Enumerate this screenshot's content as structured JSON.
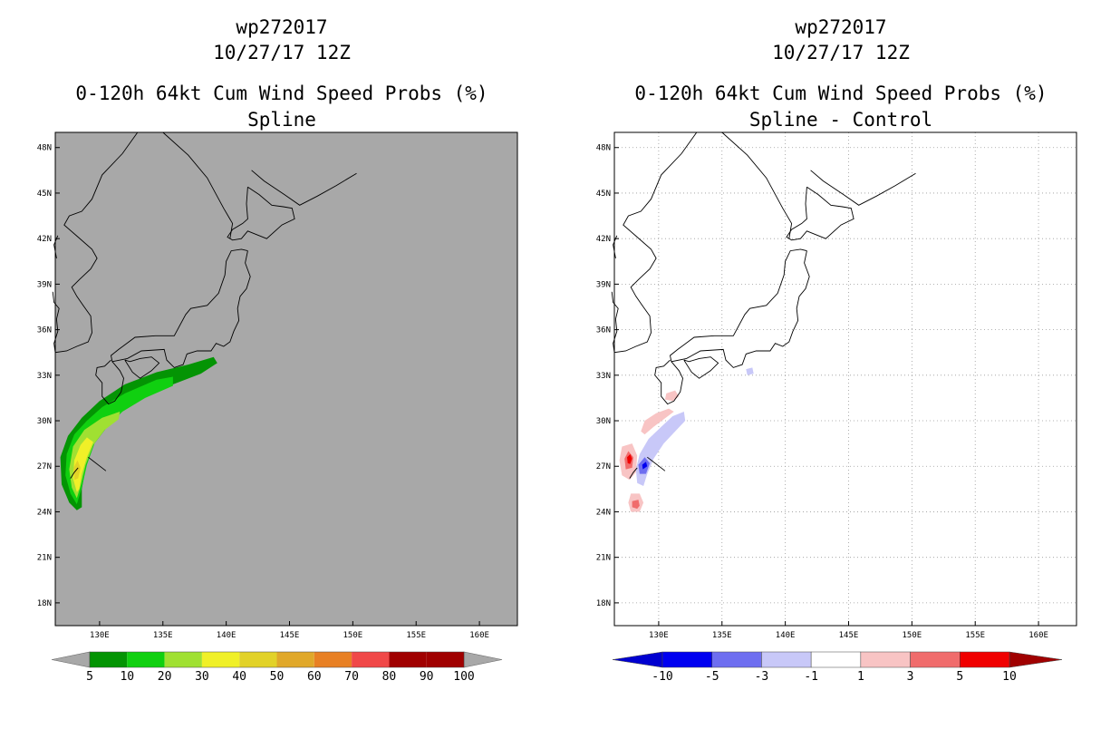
{
  "chart_data": [
    {
      "type": "heatmap",
      "storm_id": "wp272017",
      "datetime": "10/27/17 12Z",
      "title": "0-120h 64kt Cum Wind Speed Probs (%)",
      "subtitle": "Spline",
      "background_color": "#a8a8a8",
      "xlim": [
        126.5,
        163
      ],
      "ylim": [
        16.5,
        49
      ],
      "x_ticks": [
        {
          "value": 130,
          "label": "130E"
        },
        {
          "value": 135,
          "label": "135E"
        },
        {
          "value": 140,
          "label": "140E"
        },
        {
          "value": 145,
          "label": "145E"
        },
        {
          "value": 150,
          "label": "150E"
        },
        {
          "value": 155,
          "label": "155E"
        },
        {
          "value": 160,
          "label": "160E"
        }
      ],
      "y_ticks": [
        {
          "value": 18,
          "label": "18N"
        },
        {
          "value": 21,
          "label": "21N"
        },
        {
          "value": 24,
          "label": "24N"
        },
        {
          "value": 27,
          "label": "27N"
        },
        {
          "value": 30,
          "label": "30N"
        },
        {
          "value": 33,
          "label": "33N"
        },
        {
          "value": 36,
          "label": "36N"
        },
        {
          "value": 39,
          "label": "39N"
        },
        {
          "value": 42,
          "label": "42N"
        },
        {
          "value": 45,
          "label": "45N"
        },
        {
          "value": 48,
          "label": "48N"
        }
      ],
      "grid": false,
      "colorbar": {
        "labels": [
          "5",
          "10",
          "20",
          "30",
          "40",
          "50",
          "60",
          "70",
          "80",
          "90",
          "100"
        ],
        "colors": [
          "#049404",
          "#10d010",
          "#a0e032",
          "#f0f028",
          "#e2d228",
          "#e0a82a",
          "#e88024",
          "#f04848",
          "#a00000",
          "#a00000",
          "#8000e0"
        ],
        "extend_color": "#a8a8a8"
      },
      "contours": [
        {
          "level": 5,
          "color": "#049404",
          "points": [
            [
              128.2,
              24.1
            ],
            [
              127.6,
              24.6
            ],
            [
              127.0,
              25.8
            ],
            [
              126.9,
              27.6
            ],
            [
              127.5,
              29.0
            ],
            [
              128.6,
              30.2
            ],
            [
              130.0,
              31.3
            ],
            [
              132.0,
              32.4
            ],
            [
              134.5,
              33.2
            ],
            [
              137.0,
              33.7
            ],
            [
              139.0,
              34.2
            ],
            [
              139.3,
              33.8
            ],
            [
              138.0,
              33.1
            ],
            [
              135.5,
              32.3
            ],
            [
              133.0,
              31.5
            ],
            [
              131.0,
              30.3
            ],
            [
              129.8,
              29.0
            ],
            [
              129.0,
              27.4
            ],
            [
              128.6,
              25.5
            ],
            [
              128.6,
              24.3
            ]
          ]
        },
        {
          "level": 10,
          "color": "#10d010",
          "points": [
            [
              128.2,
              24.5
            ],
            [
              127.7,
              25.2
            ],
            [
              127.3,
              26.4
            ],
            [
              127.4,
              27.8
            ],
            [
              128.0,
              29.1
            ],
            [
              129.0,
              30.0
            ],
            [
              130.2,
              30.9
            ],
            [
              132.0,
              31.8
            ],
            [
              134.5,
              32.7
            ],
            [
              135.8,
              32.9
            ],
            [
              135.8,
              32.3
            ],
            [
              133.6,
              31.5
            ],
            [
              131.8,
              30.6
            ],
            [
              130.6,
              29.6
            ],
            [
              129.6,
              28.5
            ],
            [
              129.0,
              27.1
            ],
            [
              128.6,
              25.6
            ]
          ]
        },
        {
          "level": 20,
          "color": "#a0e032",
          "points": [
            [
              128.2,
              24.9
            ],
            [
              127.8,
              25.6
            ],
            [
              127.6,
              26.8
            ],
            [
              127.9,
              28.3
            ],
            [
              128.8,
              29.4
            ],
            [
              130.2,
              30.2
            ],
            [
              131.6,
              30.6
            ],
            [
              131.5,
              30.1
            ],
            [
              130.4,
              29.4
            ],
            [
              129.5,
              28.4
            ],
            [
              128.9,
              27.1
            ],
            [
              128.5,
              25.7
            ]
          ]
        },
        {
          "level": 30,
          "color": "#f0f028",
          "points": [
            [
              128.2,
              25.3
            ],
            [
              127.9,
              26.2
            ],
            [
              128.0,
              27.4
            ],
            [
              128.5,
              28.4
            ],
            [
              129.0,
              28.9
            ],
            [
              129.5,
              28.6
            ],
            [
              129.0,
              27.6
            ],
            [
              128.6,
              26.5
            ],
            [
              128.4,
              25.5
            ]
          ]
        },
        {
          "level": 40,
          "color": "#e2d228",
          "points": [
            [
              128.0,
              26.1
            ],
            [
              127.95,
              26.9
            ],
            [
              128.25,
              27.4
            ],
            [
              128.5,
              26.9
            ],
            [
              128.3,
              26.2
            ]
          ]
        }
      ],
      "colorbar_domain": [
        5,
        100
      ]
    },
    {
      "type": "heatmap",
      "storm_id": "wp272017",
      "datetime": "10/27/17 12Z",
      "title": "0-120h 64kt Cum Wind Speed Probs (%)",
      "subtitle": "Spline - Control",
      "background_color": "#ffffff",
      "xlim": [
        126.5,
        163
      ],
      "ylim": [
        16.5,
        49
      ],
      "x_ticks": [
        {
          "value": 130,
          "label": "130E"
        },
        {
          "value": 135,
          "label": "135E"
        },
        {
          "value": 140,
          "label": "140E"
        },
        {
          "value": 145,
          "label": "145E"
        },
        {
          "value": 150,
          "label": "150E"
        },
        {
          "value": 155,
          "label": "155E"
        },
        {
          "value": 160,
          "label": "160E"
        }
      ],
      "y_ticks": [
        {
          "value": 18,
          "label": "18N"
        },
        {
          "value": 21,
          "label": "21N"
        },
        {
          "value": 24,
          "label": "24N"
        },
        {
          "value": 27,
          "label": "27N"
        },
        {
          "value": 30,
          "label": "30N"
        },
        {
          "value": 33,
          "label": "33N"
        },
        {
          "value": 36,
          "label": "36N"
        },
        {
          "value": 39,
          "label": "39N"
        },
        {
          "value": 42,
          "label": "42N"
        },
        {
          "value": 45,
          "label": "45N"
        },
        {
          "value": 48,
          "label": "48N"
        }
      ],
      "grid": true,
      "colorbar": {
        "labels": [
          "-10",
          "-5",
          "-3",
          "-1",
          "1",
          "3",
          "5",
          "10"
        ],
        "colors": [
          "#0000d0",
          "#0000f0",
          "#6e6ef0",
          "#c8c8f8",
          "#ffffff",
          "#f8c4c4",
          "#f06c6c",
          "#f00000",
          "#a00000"
        ],
        "extend_low_color": "#0000d0",
        "extend_high_color": "#a00000"
      },
      "contours": [
        {
          "level": 1,
          "color": "#f8c4c4",
          "points": [
            [
              127.1,
              26.4
            ],
            [
              126.9,
              27.4
            ],
            [
              127.1,
              28.3
            ],
            [
              127.9,
              28.5
            ],
            [
              128.3,
              27.7
            ],
            [
              128.2,
              26.6
            ],
            [
              127.7,
              26.1
            ]
          ]
        },
        {
          "level": 3,
          "color": "#f06c6c",
          "points": [
            [
              127.4,
              26.8
            ],
            [
              127.3,
              27.5
            ],
            [
              127.6,
              28.0
            ],
            [
              128.0,
              27.6
            ],
            [
              127.9,
              26.9
            ]
          ]
        },
        {
          "level": 5,
          "color": "#f00000",
          "points": [
            [
              127.55,
              27.2
            ],
            [
              127.5,
              27.6
            ],
            [
              127.75,
              27.8
            ],
            [
              127.9,
              27.5
            ],
            [
              127.75,
              27.15
            ]
          ]
        },
        {
          "level": 1,
          "color": "#f8c4c4",
          "points": [
            [
              127.8,
              24.0
            ],
            [
              127.6,
              24.6
            ],
            [
              127.8,
              25.2
            ],
            [
              128.5,
              25.2
            ],
            [
              128.8,
              24.6
            ],
            [
              128.5,
              24.0
            ]
          ]
        },
        {
          "level": 3,
          "color": "#f06c6c",
          "points": [
            [
              127.9,
              24.3
            ],
            [
              127.9,
              24.7
            ],
            [
              128.4,
              24.8
            ],
            [
              128.5,
              24.4
            ],
            [
              128.3,
              24.2
            ]
          ]
        },
        {
          "level": 1,
          "color": "#f8c4c4",
          "points": [
            [
              128.6,
              29.3
            ],
            [
              128.9,
              30.0
            ],
            [
              129.8,
              30.5
            ],
            [
              130.8,
              30.8
            ],
            [
              131.2,
              30.6
            ],
            [
              130.4,
              30.1
            ],
            [
              129.6,
              29.6
            ],
            [
              128.9,
              29.1
            ]
          ]
        },
        {
          "level": 1,
          "color": "#f8c4c4",
          "points": [
            [
              130.5,
              31.4
            ],
            [
              130.6,
              31.8
            ],
            [
              131.3,
              32.0
            ],
            [
              131.6,
              31.6
            ],
            [
              131.1,
              31.3
            ]
          ]
        },
        {
          "level": -1,
          "color": "#c8c8f8",
          "points": [
            [
              128.3,
              25.9
            ],
            [
              128.2,
              26.8
            ],
            [
              128.5,
              27.8
            ],
            [
              129.2,
              28.8
            ],
            [
              130.2,
              29.6
            ],
            [
              131.1,
              30.3
            ],
            [
              132.0,
              30.6
            ],
            [
              132.1,
              30.0
            ],
            [
              131.3,
              29.3
            ],
            [
              130.4,
              28.5
            ],
            [
              129.6,
              27.5
            ],
            [
              129.1,
              26.5
            ],
            [
              128.8,
              25.7
            ]
          ]
        },
        {
          "level": -3,
          "color": "#6e6ef0",
          "points": [
            [
              128.5,
              26.5
            ],
            [
              128.4,
              27.1
            ],
            [
              128.9,
              27.6
            ],
            [
              129.3,
              27.2
            ],
            [
              129.0,
              26.5
            ]
          ]
        },
        {
          "level": -5,
          "color": "#0000f0",
          "points": [
            [
              128.75,
              26.8
            ],
            [
              128.7,
              27.1
            ],
            [
              129.0,
              27.3
            ],
            [
              129.1,
              27.0
            ]
          ]
        },
        {
          "level": -1,
          "color": "#c8c8f8",
          "points": [
            [
              137.0,
              33.0
            ],
            [
              136.9,
              33.4
            ],
            [
              137.4,
              33.5
            ],
            [
              137.5,
              33.1
            ]
          ]
        }
      ],
      "colorbar_domain": [
        -10,
        10
      ]
    }
  ]
}
